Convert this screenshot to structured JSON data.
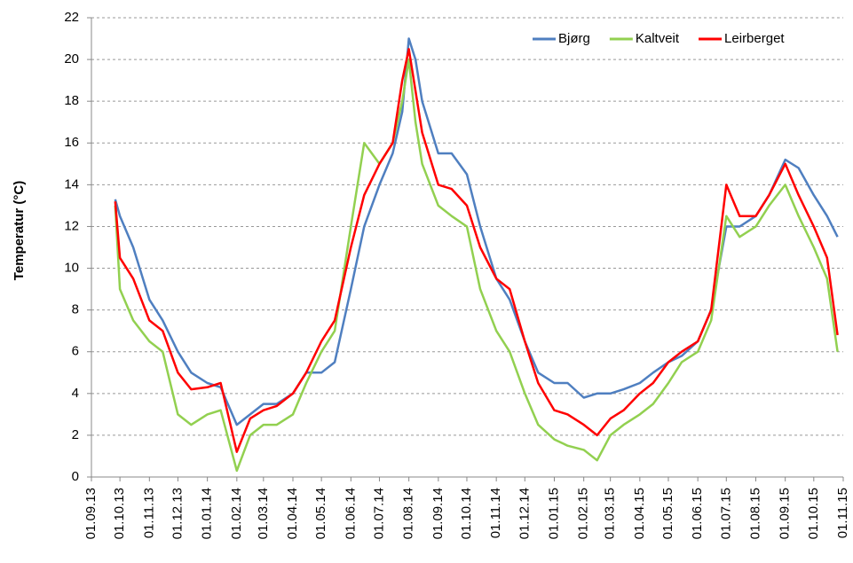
{
  "chart_data": {
    "type": "line",
    "y_label": "Temperatur (°C)",
    "x": [
      "26.09.13",
      "01.10.13",
      "15.10.13",
      "01.11.13",
      "15.11.13",
      "01.12.13",
      "15.12.13",
      "01.01.14",
      "15.01.14",
      "01.02.14",
      "15.02.14",
      "01.03.14",
      "15.03.14",
      "01.04.14",
      "15.04.14",
      "01.05.14",
      "15.05.14",
      "01.06.14",
      "15.06.14",
      "01.07.14",
      "15.07.14",
      "25.07.14",
      "01.08.14",
      "08.08.14",
      "15.08.14",
      "01.09.14",
      "15.09.14",
      "01.10.14",
      "15.10.14",
      "01.11.14",
      "15.11.14",
      "01.12.14",
      "15.12.14",
      "01.01.15",
      "15.01.15",
      "01.02.15",
      "15.02.15",
      "01.03.15",
      "15.03.15",
      "01.04.15",
      "15.04.15",
      "01.05.15",
      "15.05.15",
      "01.06.15",
      "15.06.15",
      "01.07.15",
      "15.07.15",
      "01.08.15",
      "15.08.15",
      "01.09.15",
      "15.09.15",
      "01.10.15",
      "15.10.15",
      "26.10.15"
    ],
    "series": [
      {
        "name": "Bjørg",
        "color": "#4f7fc0",
        "values": [
          13.3,
          12.5,
          11,
          8.5,
          7.5,
          6,
          5,
          4.5,
          4.3,
          2.5,
          3,
          3.5,
          3.5,
          4,
          5,
          5,
          5.5,
          9,
          12,
          14,
          15.5,
          17.5,
          21,
          20,
          18,
          15.5,
          15.5,
          14.5,
          12,
          9.5,
          8.5,
          6.5,
          5,
          4.5,
          4.5,
          3.8,
          4,
          4,
          4.2,
          4.5,
          5,
          5.5,
          5.8,
          6.5,
          8,
          12,
          12,
          12.5,
          13.5,
          15.2,
          14.8,
          13.5,
          12.5,
          11.5
        ]
      },
      {
        "name": "Kaltveit",
        "color": "#92d050",
        "values": [
          13,
          9,
          7.5,
          6.5,
          6,
          3,
          2.5,
          3,
          3.2,
          0.3,
          2,
          2.5,
          2.5,
          3,
          4.5,
          6,
          7,
          12,
          16,
          15,
          16,
          18,
          20,
          17,
          15,
          13,
          12.5,
          12,
          9,
          7,
          6,
          4,
          2.5,
          1.8,
          1.5,
          1.3,
          0.8,
          2,
          2.5,
          3,
          3.5,
          4.5,
          5.5,
          6,
          7.5,
          12.5,
          11.5,
          12,
          13,
          14,
          12.5,
          11,
          9.5,
          6
        ]
      },
      {
        "name": "Leirberget",
        "color": "#ff0000",
        "values": [
          13.2,
          10.5,
          9.5,
          7.5,
          7,
          5,
          4.2,
          4.3,
          4.5,
          1.2,
          2.8,
          3.2,
          3.4,
          4,
          5,
          6.5,
          7.5,
          11,
          13.5,
          15,
          16,
          19,
          20.5,
          18.5,
          16.5,
          14,
          13.8,
          13,
          11,
          9.5,
          9,
          6.5,
          4.5,
          3.2,
          3,
          2.5,
          2,
          2.8,
          3.2,
          4,
          4.5,
          5.5,
          6,
          6.5,
          8,
          14,
          12.5,
          12.5,
          13.5,
          15,
          13.5,
          12,
          10.5,
          6.8
        ]
      }
    ],
    "xlim": [
      "01.09.13",
      "01.11.15"
    ],
    "xticks": [
      "01.09.13",
      "01.10.13",
      "01.11.13",
      "01.12.13",
      "01.01.14",
      "01.02.14",
      "01.03.14",
      "01.04.14",
      "01.05.14",
      "01.06.14",
      "01.07.14",
      "01.08.14",
      "01.09.14",
      "01.10.14",
      "01.11.14",
      "01.12.14",
      "01.01.15",
      "01.02.15",
      "01.03.15",
      "01.04.15",
      "01.05.15",
      "01.06.15",
      "01.07.15",
      "01.08.15",
      "01.09.15",
      "01.10.15",
      "01.11.15"
    ],
    "ylim": [
      0,
      22
    ],
    "yticks": [
      0,
      2,
      4,
      6,
      8,
      10,
      12,
      14,
      16,
      18,
      20,
      22
    ],
    "grid": true,
    "legend": "upper right"
  }
}
